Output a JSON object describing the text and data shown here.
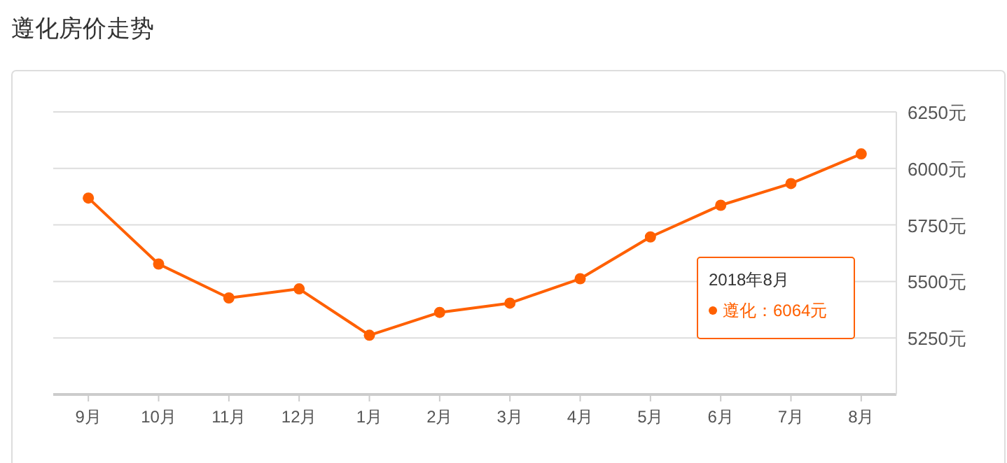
{
  "chart_data": {
    "type": "line",
    "title": "遵化房价走势",
    "categories": [
      "9月",
      "10月",
      "11月",
      "12月",
      "1月",
      "2月",
      "3月",
      "4月",
      "5月",
      "6月",
      "7月",
      "8月"
    ],
    "series": [
      {
        "color": "#ff6000",
        "values": [
          5869,
          5577,
          5427,
          5467,
          5262,
          5363,
          5404,
          5512,
          5697,
          5837,
          5933,
          6064
        ]
      }
    ],
    "ylim": [
      5000,
      6250
    ],
    "yticks": [
      {
        "value": 5250,
        "label": "5250元"
      },
      {
        "value": 5500,
        "label": "5500元"
      },
      {
        "value": 5750,
        "label": "5750元"
      },
      {
        "value": 6000,
        "label": "6000元"
      },
      {
        "value": 6250,
        "label": "6250元"
      }
    ],
    "grid": "y",
    "marker": "circle",
    "line_style": "solid",
    "annotations": [
      "2018年8月",
      "遵化：6064元"
    ]
  }
}
